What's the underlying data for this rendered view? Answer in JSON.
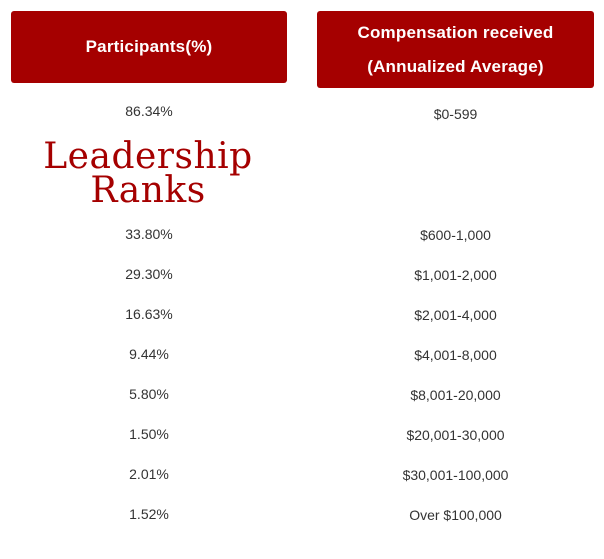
{
  "headers": {
    "participants": "Participants(%)",
    "compensation_line1": "Compensation received",
    "compensation_line2": "(Annualized Average)"
  },
  "overlay": {
    "line1": "Leadership",
    "line2": "Ranks"
  },
  "accent_color": "#a50000",
  "rows": [
    {
      "participants": "86.34%",
      "compensation": "$0-599"
    },
    {
      "participants": "33.80%",
      "compensation": "$600-1,000"
    },
    {
      "participants": "29.30%",
      "compensation": "$1,001-2,000"
    },
    {
      "participants": "16.63%",
      "compensation": "$2,001-4,000"
    },
    {
      "participants": "9.44%",
      "compensation": "$4,001-8,000"
    },
    {
      "participants": "5.80%",
      "compensation": "$8,001-20,000"
    },
    {
      "participants": "1.50%",
      "compensation": "$20,001-30,000"
    },
    {
      "participants": "2.01%",
      "compensation": "$30,001-100,000"
    },
    {
      "participants": "1.52%",
      "compensation": "Over $100,000"
    }
  ]
}
